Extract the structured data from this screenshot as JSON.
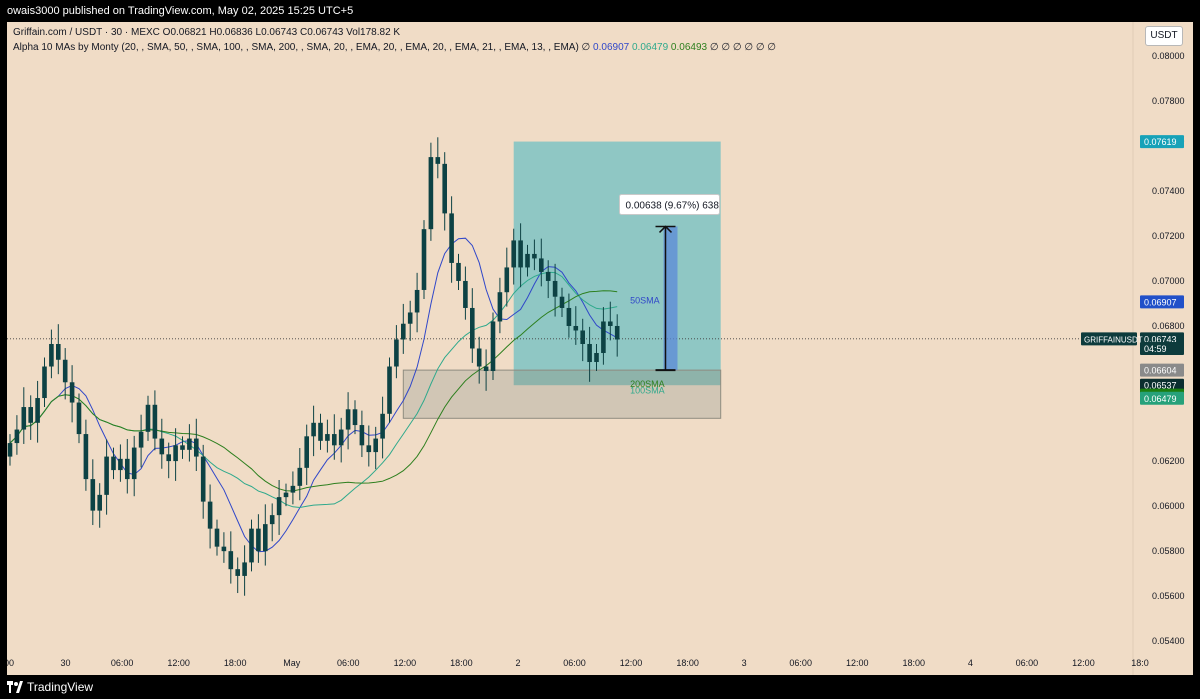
{
  "header": {
    "publisher_line": "owais3000 published on TradingView.com, May 02, 2025 15:25 UTC+5"
  },
  "footer": {
    "brand": "TradingView",
    "logo_icon": "tradingview-logo-icon"
  },
  "legend": {
    "symbol_line": "Griffain.com / USDT · 30 · MEXC  O0.06821  H0.06836  L0.06743  C0.06743  Vol178.82 K",
    "indicator_line": "Alpha 10 MAs by Monty (20, , SMA, 50, , SMA, 100, , SMA, 200, , SMA, 20, , EMA, 20, , EMA, 20, , EMA, 21, , EMA, 13, , EMA)  ∅",
    "ma_value_1": "0.06907",
    "ma_value_2": "0.06479",
    "ma_value_3": "0.06493",
    "trailing": "∅  ∅  ∅  ∅  ∅  ∅"
  },
  "currency_button": "USDT",
  "measure_label": "0.00638 (9.67%) 638",
  "ma_labels": {
    "sma50": "50SMA",
    "sma200": "200SMA",
    "sma100": "100SMA"
  },
  "colors": {
    "background": "#f0dcc6",
    "candle": "#0d4244",
    "sma50": "#3047c9",
    "sma200": "#2d7f1e",
    "sma100": "#2ea98c",
    "target_zone": "#7ec3c3",
    "stop_zone": "#29a3a6",
    "support_box": "#b8b5a8",
    "measure": "#5b8ad8"
  },
  "chart_data": {
    "type": "candlestick",
    "title": "Griffain.com / USDT · 30 · MEXC",
    "y_ticks": [
      "0.08000",
      "0.07800",
      "0.07619",
      "0.07400",
      "0.07200",
      "0.07000",
      "0.06800",
      "0.06200",
      "0.06000",
      "0.05800",
      "0.05600",
      "0.05400"
    ],
    "x_ticks": [
      "00",
      "30",
      "06:00",
      "12:00",
      "18:00",
      "May",
      "06:00",
      "12:00",
      "18:00",
      "2",
      "06:00",
      "12:00",
      "18:00",
      "3",
      "06:00",
      "12:00",
      "18:00",
      "4",
      "06:00",
      "12:00",
      "18:0"
    ],
    "ylim": [
      0.0525,
      0.0815
    ],
    "price_labels": [
      {
        "text": "0.07619",
        "value": 0.07619,
        "color": "#17a2b8"
      },
      {
        "text": "0.06907",
        "value": 0.06907,
        "color": "#2150c9"
      },
      {
        "text": "0.06743",
        "value": 0.06743,
        "color": "#0d3b3c"
      },
      {
        "text": "04:59",
        "value": 0.067,
        "color": "#0d3b3c"
      },
      {
        "text": "0.06604",
        "value": 0.06604,
        "color": "#8a8a8a"
      },
      {
        "text": "0.06537",
        "value": 0.06537,
        "color": "#0b2e2f"
      },
      {
        "text": "0.06493",
        "value": 0.06493,
        "color": "#1b7d10"
      },
      {
        "text": "0.06479",
        "value": 0.06479,
        "color": "#26a17a"
      }
    ],
    "symbol_tag": "GRIFFAINUSDT",
    "position": {
      "entry": 0.06604,
      "target": 0.07619,
      "stop": 0.06537
    },
    "support_zone": [
      0.06604,
      0.0639
    ],
    "measure": {
      "from": 0.06604,
      "to": 0.07242
    },
    "current_price": 0.06743,
    "close_series": [
      0.0628,
      0.0634,
      0.0644,
      0.0637,
      0.0648,
      0.0662,
      0.0672,
      0.0665,
      0.0655,
      0.0646,
      0.0632,
      0.0612,
      0.0598,
      0.0605,
      0.0622,
      0.0616,
      0.0621,
      0.0612,
      0.0626,
      0.0633,
      0.0645,
      0.063,
      0.0623,
      0.062,
      0.0627,
      0.0625,
      0.063,
      0.0622,
      0.0602,
      0.059,
      0.0582,
      0.058,
      0.0572,
      0.0569,
      0.0575,
      0.059,
      0.058,
      0.0592,
      0.0596,
      0.0604,
      0.0606,
      0.0609,
      0.0617,
      0.0631,
      0.0637,
      0.0629,
      0.0632,
      0.0627,
      0.0634,
      0.0643,
      0.0636,
      0.0627,
      0.0624,
      0.063,
      0.0641,
      0.0662,
      0.0674,
      0.0681,
      0.0686,
      0.0696,
      0.0723,
      0.0755,
      0.0752,
      0.073,
      0.0708,
      0.07,
      0.0688,
      0.067,
      0.0662,
      0.066,
      0.0682,
      0.0695,
      0.0706,
      0.0718,
      0.0706,
      0.0712,
      0.071,
      0.0704,
      0.07,
      0.0693,
      0.0688,
      0.068,
      0.0678,
      0.0672,
      0.0664,
      0.0668,
      0.0682,
      0.068,
      0.0674
    ]
  }
}
